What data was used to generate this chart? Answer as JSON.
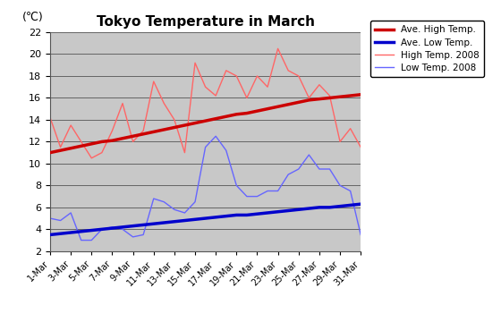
{
  "title": "Tokyo Temperature in March",
  "ylabel": "(℃)",
  "ylim": [
    2,
    22
  ],
  "yticks": [
    2,
    4,
    6,
    8,
    10,
    12,
    14,
    16,
    18,
    20,
    22
  ],
  "days": [
    1,
    2,
    3,
    4,
    5,
    6,
    7,
    8,
    9,
    10,
    11,
    12,
    13,
    14,
    15,
    16,
    17,
    18,
    19,
    20,
    21,
    22,
    23,
    24,
    25,
    26,
    27,
    28,
    29,
    30,
    31
  ],
  "x_labels": [
    "1-Mar",
    "3-Mar",
    "5-Mar",
    "7-Mar",
    "9-Mar",
    "11-Mar",
    "13-Mar",
    "15-Mar",
    "17-Mar",
    "19-Mar",
    "21-Mar",
    "23-Mar",
    "25-Mar",
    "27-Mar",
    "29-Mar",
    "31-Mar"
  ],
  "x_label_days": [
    1,
    3,
    5,
    7,
    9,
    11,
    13,
    15,
    17,
    19,
    21,
    23,
    25,
    27,
    29,
    31
  ],
  "ave_high": [
    11.0,
    11.2,
    11.4,
    11.6,
    11.8,
    12.0,
    12.1,
    12.3,
    12.5,
    12.7,
    12.9,
    13.1,
    13.3,
    13.5,
    13.7,
    13.9,
    14.1,
    14.3,
    14.5,
    14.6,
    14.8,
    15.0,
    15.2,
    15.4,
    15.6,
    15.8,
    15.9,
    16.0,
    16.1,
    16.2,
    16.3
  ],
  "ave_low": [
    3.5,
    3.6,
    3.7,
    3.8,
    3.9,
    4.0,
    4.1,
    4.2,
    4.3,
    4.4,
    4.5,
    4.6,
    4.7,
    4.8,
    4.9,
    5.0,
    5.1,
    5.2,
    5.3,
    5.3,
    5.4,
    5.5,
    5.6,
    5.7,
    5.8,
    5.9,
    6.0,
    6.0,
    6.1,
    6.2,
    6.3
  ],
  "high_2008": [
    14.2,
    11.5,
    13.5,
    12.0,
    10.5,
    11.0,
    13.0,
    15.5,
    12.0,
    13.0,
    17.5,
    15.5,
    14.0,
    11.0,
    19.2,
    17.0,
    16.2,
    18.5,
    18.0,
    16.0,
    18.0,
    17.0,
    20.5,
    18.5,
    18.0,
    16.0,
    17.2,
    16.2,
    12.0,
    13.2,
    11.5
  ],
  "low_2008": [
    5.0,
    4.8,
    5.5,
    3.0,
    3.0,
    4.0,
    4.2,
    4.0,
    3.3,
    3.5,
    6.8,
    6.5,
    5.8,
    5.5,
    6.5,
    11.5,
    12.5,
    11.2,
    8.0,
    7.0,
    7.0,
    7.5,
    7.5,
    9.0,
    9.5,
    10.8,
    9.5,
    9.5,
    8.0,
    7.5,
    3.5
  ],
  "ave_high_color": "#cc0000",
  "ave_low_color": "#0000cc",
  "high_2008_color": "#ff6666",
  "low_2008_color": "#6666ff",
  "bg_color": "#c8c8c8",
  "legend_labels": [
    "Ave. High Temp.",
    "Ave. Low Temp.",
    "High Temp. 2008",
    "Low Temp. 2008"
  ]
}
